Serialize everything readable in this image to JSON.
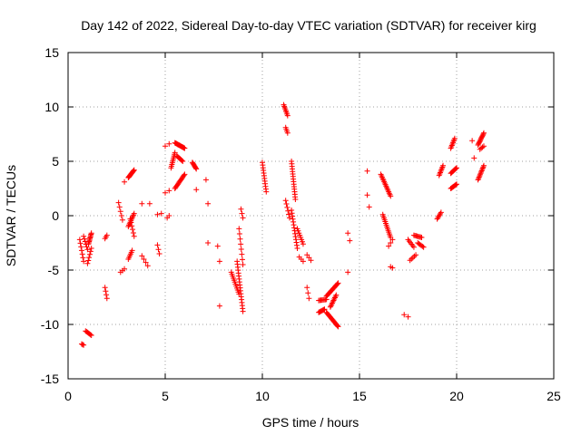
{
  "chart_data": {
    "type": "scatter",
    "title": "Day 142 of 2022, Sidereal Day-to-day VTEC variation (SDTVAR) for receiver kirg",
    "xlabel": "GPS time / hours",
    "ylabel": "SDTVAR / TECUs",
    "xlim": [
      0,
      25
    ],
    "ylim": [
      -15,
      15
    ],
    "xticks": [
      0,
      5,
      10,
      15,
      20,
      25
    ],
    "yticks": [
      -15,
      -10,
      -5,
      0,
      5,
      10,
      15
    ],
    "grid": true,
    "marker": "+",
    "color": "#ff0000",
    "segments": [
      {
        "x": [
          0.6,
          0.8
        ],
        "y": [
          -2.2,
          -4.2
        ],
        "n": 7
      },
      {
        "x": [
          0.8,
          1.0
        ],
        "y": [
          -1.9,
          -3.1
        ],
        "n": 6
      },
      {
        "x": [
          1.0,
          1.2
        ],
        "y": [
          -4.4,
          -3.0
        ],
        "n": 6
      },
      {
        "x": [
          1.05,
          1.2
        ],
        "y": [
          -2.6,
          -1.6
        ],
        "n": 10
      },
      {
        "x": [
          0.7,
          0.8
        ],
        "y": [
          -11.8,
          -11.9
        ],
        "n": 3
      },
      {
        "x": [
          0.9,
          1.2
        ],
        "y": [
          -10.6,
          -11.0
        ],
        "n": 7
      },
      {
        "x": [
          1.9,
          2.0
        ],
        "y": [
          -2.1,
          -1.8
        ],
        "n": 3
      },
      {
        "x": [
          1.9,
          2.0
        ],
        "y": [
          -6.6,
          -7.6
        ],
        "n": 4
      },
      {
        "x": [
          2.6,
          2.8
        ],
        "y": [
          1.2,
          -0.4
        ],
        "n": 5
      },
      {
        "x": [
          2.7,
          2.9
        ],
        "y": [
          -5.2,
          -4.9
        ],
        "n": 3
      },
      {
        "x": [
          2.9,
          3.0
        ],
        "y": [
          3.1,
          3.1
        ],
        "n": 1
      },
      {
        "x": [
          3.1,
          3.4
        ],
        "y": [
          3.5,
          4.2
        ],
        "n": 12
      },
      {
        "x": [
          3.1,
          3.3
        ],
        "y": [
          -4.0,
          -3.2
        ],
        "n": 6
      },
      {
        "x": [
          3.1,
          3.4
        ],
        "y": [
          -1.0,
          0.2
        ],
        "n": 10
      },
      {
        "x": [
          3.2,
          3.4
        ],
        "y": [
          -0.3,
          -1.9
        ],
        "n": 6
      },
      {
        "x": [
          3.8,
          4.2
        ],
        "y": [
          1.1,
          1.1
        ],
        "n": 2
      },
      {
        "x": [
          3.8,
          4.1
        ],
        "y": [
          -3.7,
          -4.6
        ],
        "n": 4
      },
      {
        "x": [
          4.6,
          4.8
        ],
        "y": [
          0.1,
          0.2
        ],
        "n": 2
      },
      {
        "x": [
          4.6,
          4.7
        ],
        "y": [
          -2.7,
          -3.5
        ],
        "n": 3
      },
      {
        "x": [
          5.0,
          5.2
        ],
        "y": [
          6.4,
          6.6
        ],
        "n": 2
      },
      {
        "x": [
          5.0,
          5.2
        ],
        "y": [
          2.1,
          2.3
        ],
        "n": 2
      },
      {
        "x": [
          5.1,
          5.2
        ],
        "y": [
          -0.2,
          0.0
        ],
        "n": 2
      },
      {
        "x": [
          5.3,
          5.5
        ],
        "y": [
          4.4,
          5.8
        ],
        "n": 10
      },
      {
        "x": [
          5.5,
          6.0
        ],
        "y": [
          6.7,
          6.2
        ],
        "n": 16
      },
      {
        "x": [
          5.5,
          6.0
        ],
        "y": [
          2.5,
          3.8
        ],
        "n": 14
      },
      {
        "x": [
          5.6,
          5.9
        ],
        "y": [
          5.5,
          5.0
        ],
        "n": 8
      },
      {
        "x": [
          6.4,
          6.6
        ],
        "y": [
          4.9,
          4.3
        ],
        "n": 8
      },
      {
        "x": [
          6.6,
          6.6
        ],
        "y": [
          2.4,
          2.4
        ],
        "n": 1
      },
      {
        "x": [
          7.1,
          7.2
        ],
        "y": [
          3.3,
          1.1
        ],
        "n": 2
      },
      {
        "x": [
          7.2,
          7.2
        ],
        "y": [
          -2.5,
          -2.5
        ],
        "n": 1
      },
      {
        "x": [
          7.7,
          7.8
        ],
        "y": [
          -2.8,
          -4.2
        ],
        "n": 2
      },
      {
        "x": [
          7.8,
          7.8
        ],
        "y": [
          -8.3,
          -8.3
        ],
        "n": 1
      },
      {
        "x": [
          8.4,
          8.8
        ],
        "y": [
          -5.2,
          -7.2
        ],
        "n": 12
      },
      {
        "x": [
          8.7,
          9.0
        ],
        "y": [
          -4.2,
          -8.8
        ],
        "n": 18
      },
      {
        "x": [
          8.8,
          9.0
        ],
        "y": [
          -1.2,
          -4.5
        ],
        "n": 8
      },
      {
        "x": [
          8.9,
          9.0
        ],
        "y": [
          0.6,
          -0.2
        ],
        "n": 3
      },
      {
        "x": [
          10.0,
          10.2
        ],
        "y": [
          4.9,
          2.2
        ],
        "n": 12
      },
      {
        "x": [
          11.1,
          11.3
        ],
        "y": [
          10.2,
          9.2
        ],
        "n": 8
      },
      {
        "x": [
          11.2,
          11.3
        ],
        "y": [
          8.1,
          7.6
        ],
        "n": 4
      },
      {
        "x": [
          11.2,
          11.4
        ],
        "y": [
          1.4,
          -0.2
        ],
        "n": 6
      },
      {
        "x": [
          11.5,
          11.7
        ],
        "y": [
          5.0,
          1.5
        ],
        "n": 16
      },
      {
        "x": [
          11.5,
          11.8
        ],
        "y": [
          0.5,
          -3.0
        ],
        "n": 14
      },
      {
        "x": [
          11.8,
          12.1
        ],
        "y": [
          -1.2,
          -2.6
        ],
        "n": 8
      },
      {
        "x": [
          11.9,
          12.1
        ],
        "y": [
          -3.8,
          -4.2
        ],
        "n": 3
      },
      {
        "x": [
          12.3,
          12.5
        ],
        "y": [
          -3.6,
          -4.1
        ],
        "n": 3
      },
      {
        "x": [
          12.3,
          12.4
        ],
        "y": [
          -6.6,
          -7.6
        ],
        "n": 3
      },
      {
        "x": [
          12.9,
          13.3
        ],
        "y": [
          -7.8,
          -7.7
        ],
        "n": 8
      },
      {
        "x": [
          12.9,
          13.2
        ],
        "y": [
          -8.9,
          -8.6
        ],
        "n": 8
      },
      {
        "x": [
          13.3,
          13.9
        ],
        "y": [
          -8.9,
          -10.2
        ],
        "n": 18
      },
      {
        "x": [
          13.3,
          13.9
        ],
        "y": [
          -7.4,
          -6.2
        ],
        "n": 16
      },
      {
        "x": [
          13.5,
          13.8
        ],
        "y": [
          -8.4,
          -7.3
        ],
        "n": 10
      },
      {
        "x": [
          14.4,
          14.5
        ],
        "y": [
          -1.6,
          -2.3
        ],
        "n": 2
      },
      {
        "x": [
          14.4,
          14.4
        ],
        "y": [
          -5.2,
          -5.2
        ],
        "n": 1
      },
      {
        "x": [
          15.4,
          15.5
        ],
        "y": [
          4.1,
          4.1
        ],
        "n": 1
      },
      {
        "x": [
          15.4,
          15.5
        ],
        "y": [
          1.9,
          0.8
        ],
        "n": 2
      },
      {
        "x": [
          16.1,
          16.6
        ],
        "y": [
          3.8,
          1.8
        ],
        "n": 16
      },
      {
        "x": [
          16.2,
          16.6
        ],
        "y": [
          0.1,
          -2.0
        ],
        "n": 14
      },
      {
        "x": [
          16.5,
          16.7
        ],
        "y": [
          -2.8,
          -2.2
        ],
        "n": 3
      },
      {
        "x": [
          16.6,
          16.7
        ],
        "y": [
          -4.7,
          -4.8
        ],
        "n": 2
      },
      {
        "x": [
          17.3,
          17.5
        ],
        "y": [
          -9.1,
          -9.3
        ],
        "n": 2
      },
      {
        "x": [
          17.5,
          17.8
        ],
        "y": [
          -2.2,
          -2.9
        ],
        "n": 6
      },
      {
        "x": [
          17.6,
          17.9
        ],
        "y": [
          -4.1,
          -3.6
        ],
        "n": 5
      },
      {
        "x": [
          17.8,
          18.2
        ],
        "y": [
          -1.8,
          -2.0
        ],
        "n": 8
      },
      {
        "x": [
          18.0,
          18.3
        ],
        "y": [
          -2.5,
          -2.9
        ],
        "n": 6
      },
      {
        "x": [
          19.0,
          19.2
        ],
        "y": [
          -0.3,
          0.3
        ],
        "n": 6
      },
      {
        "x": [
          19.1,
          19.3
        ],
        "y": [
          3.7,
          4.6
        ],
        "n": 8
      },
      {
        "x": [
          19.7,
          20.0
        ],
        "y": [
          2.5,
          2.9
        ],
        "n": 8
      },
      {
        "x": [
          19.7,
          20.0
        ],
        "y": [
          3.9,
          4.4
        ],
        "n": 8
      },
      {
        "x": [
          19.7,
          19.9
        ],
        "y": [
          6.2,
          7.1
        ],
        "n": 8
      },
      {
        "x": [
          20.8,
          20.9
        ],
        "y": [
          6.9,
          6.9
        ],
        "n": 1
      },
      {
        "x": [
          20.9,
          20.9
        ],
        "y": [
          5.3,
          5.3
        ],
        "n": 1
      },
      {
        "x": [
          21.1,
          21.4
        ],
        "y": [
          6.5,
          7.6
        ],
        "n": 12
      },
      {
        "x": [
          21.1,
          21.4
        ],
        "y": [
          3.3,
          4.6
        ],
        "n": 12
      },
      {
        "x": [
          21.2,
          21.4
        ],
        "y": [
          6.1,
          6.4
        ],
        "n": 4
      }
    ]
  }
}
